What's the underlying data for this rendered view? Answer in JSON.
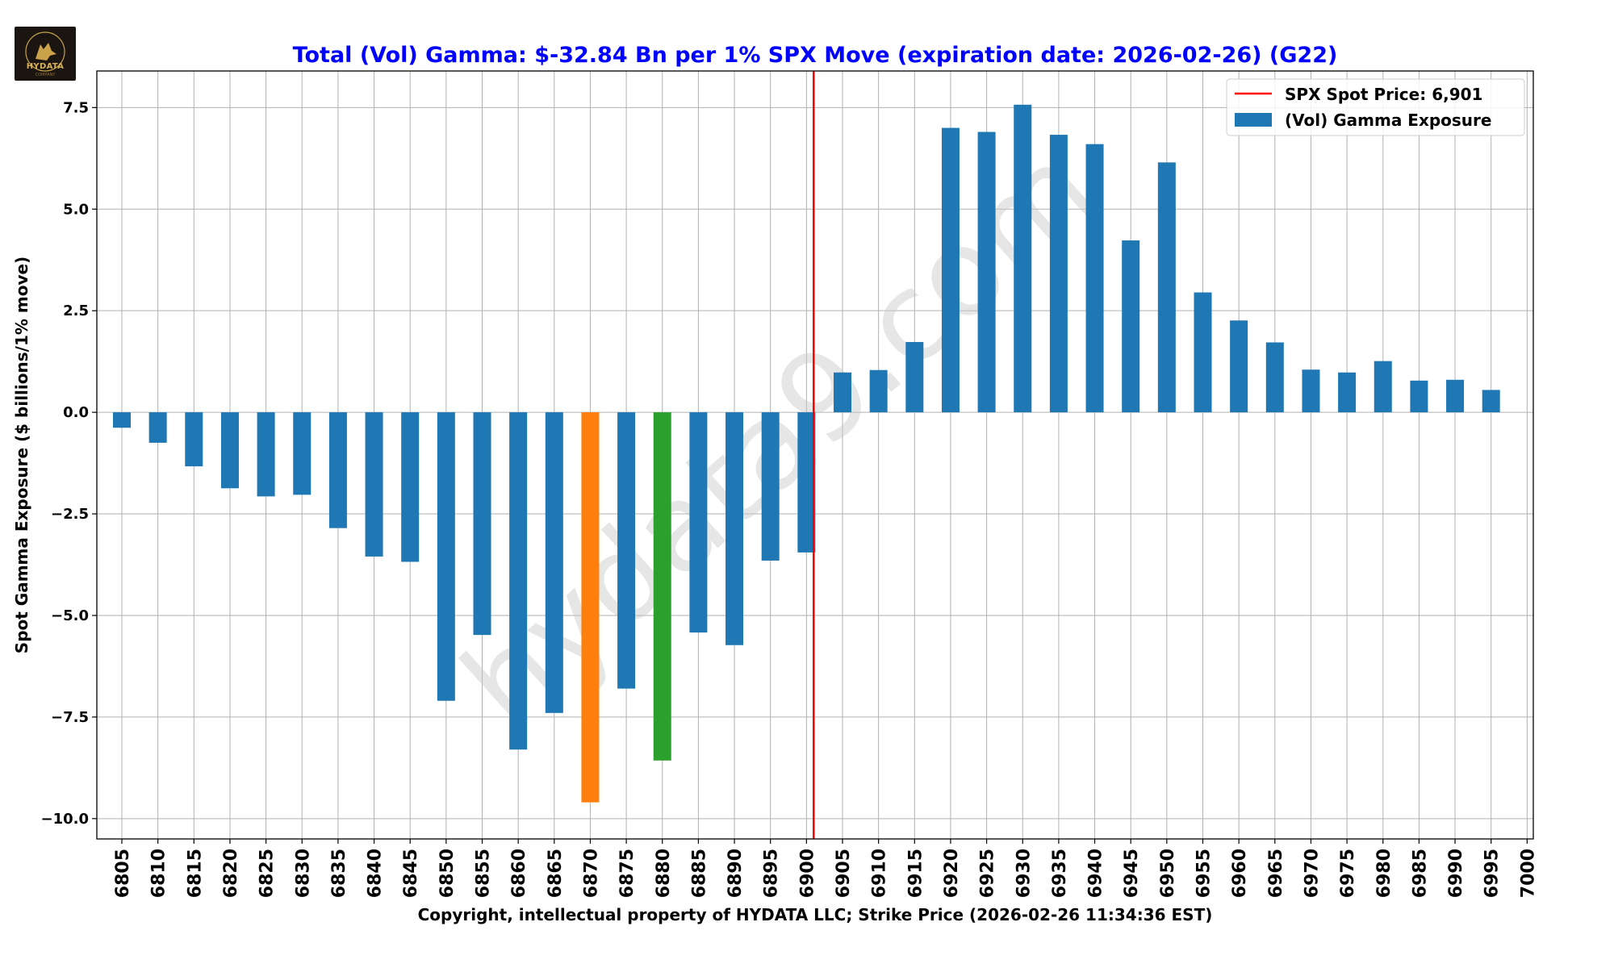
{
  "logo": {
    "text": "HYDATA",
    "tagline": "COMPANY"
  },
  "colors": {
    "bar": "#1f77b4",
    "highlight_min": "#ff7f0e",
    "highlight_second": "#2ca02c",
    "spot_line": "#ff0000",
    "title": "#0000ff",
    "grid": "#b0b0b0"
  },
  "watermark": "hydata9.com",
  "chart_data": {
    "type": "bar",
    "title": "Total (Vol) Gamma: $-32.84 Bn per 1% SPX Move (expiration date: 2026-02-26) (G22)",
    "xlabel": "Copyright, intellectual property of HYDATA LLC; Strike Price (2026-02-26 11:34:36 EST)",
    "ylabel": "Spot Gamma Exposure ($ billions/1% move)",
    "ylim": [
      -10.5,
      8.4
    ],
    "yticks": [
      -10.0,
      -7.5,
      -5.0,
      -2.5,
      0.0,
      2.5,
      5.0,
      7.5
    ],
    "ytick_labels": [
      "−10.0",
      "−7.5",
      "−5.0",
      "−2.5",
      "0.0",
      "2.5",
      "5.0",
      "7.5"
    ],
    "grid": true,
    "categories": [
      "6805",
      "6810",
      "6815",
      "6820",
      "6825",
      "6830",
      "6835",
      "6840",
      "6845",
      "6850",
      "6855",
      "6860",
      "6865",
      "6870",
      "6875",
      "6880",
      "6885",
      "6890",
      "6895",
      "6900",
      "6905",
      "6910",
      "6915",
      "6920",
      "6925",
      "6930",
      "6935",
      "6940",
      "6945",
      "6950",
      "6955",
      "6960",
      "6965",
      "6970",
      "6975",
      "6980",
      "6985",
      "6990",
      "6995",
      "7000"
    ],
    "series": [
      {
        "name": "(Vol) Gamma Exposure",
        "values": [
          -0.38,
          -0.75,
          -1.33,
          -1.87,
          -2.07,
          -2.03,
          -2.85,
          -3.55,
          -3.68,
          -7.1,
          -5.48,
          -8.3,
          -7.4,
          -9.6,
          -6.8,
          -8.57,
          -5.42,
          -5.73,
          -3.65,
          -3.45,
          0.98,
          1.04,
          1.73,
          7.0,
          6.9,
          7.57,
          6.83,
          6.6,
          4.23,
          6.15,
          2.95,
          2.26,
          1.72,
          1.05,
          0.98,
          1.26,
          0.78,
          0.8,
          0.55,
          0
        ]
      }
    ],
    "highlight_indices": {
      "min": 13,
      "second": 15
    },
    "spot": {
      "value": 6901,
      "label": "SPX Spot Price: 6,901"
    },
    "legend": {
      "placement": "top-right",
      "entries": [
        "SPX Spot Price: 6,901",
        "(Vol) Gamma Exposure"
      ]
    }
  }
}
